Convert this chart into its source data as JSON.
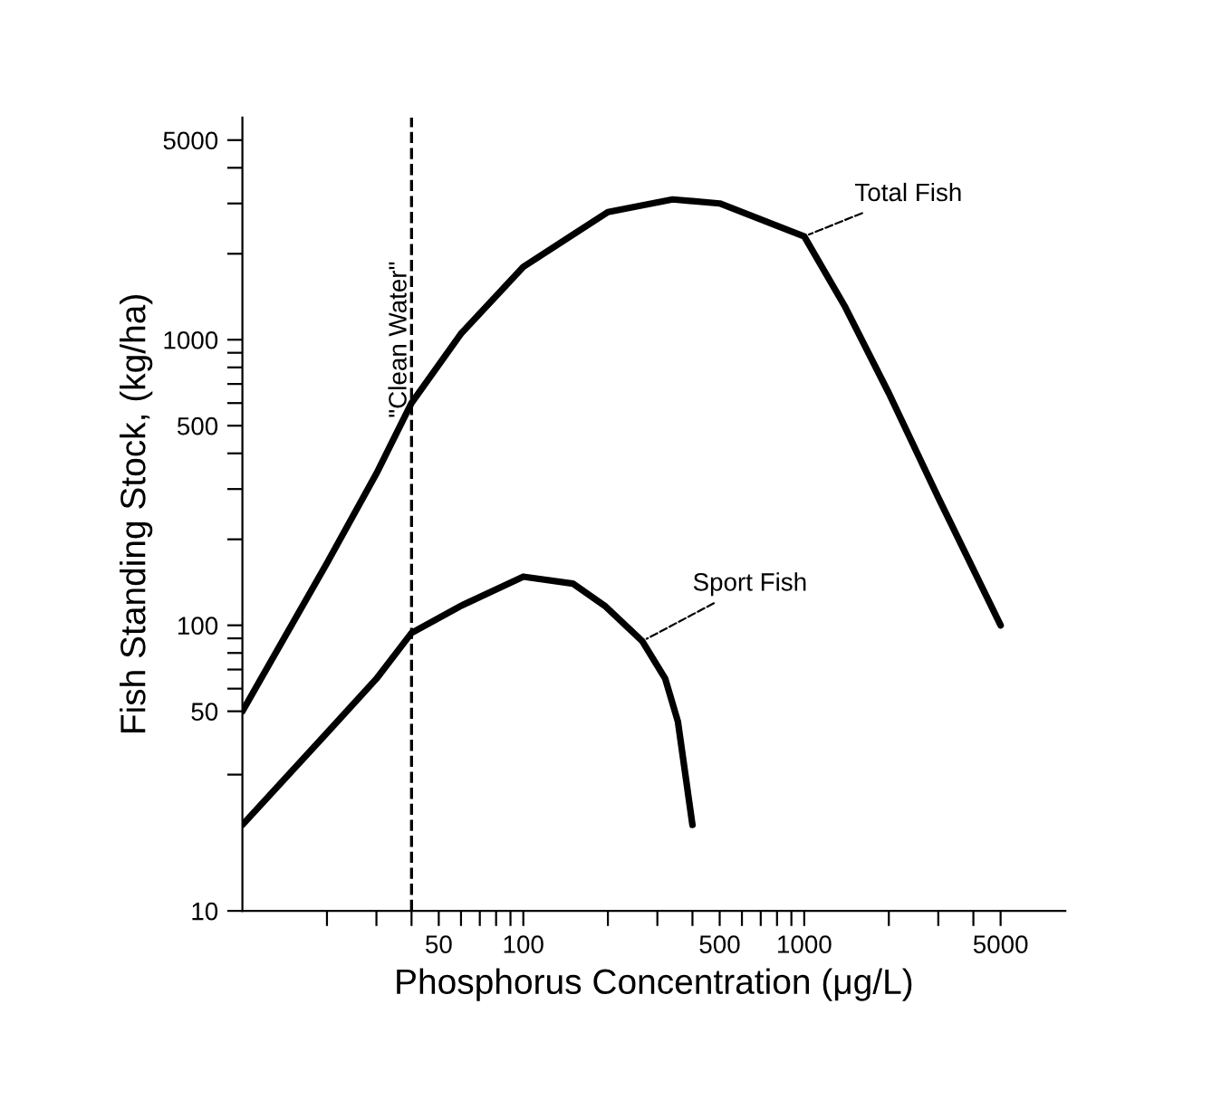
{
  "chart_data": {
    "type": "line",
    "xlabel": "Phosphorus Concentration (μg/L)",
    "ylabel": "Fish Standing Stock, (kg/ha)",
    "log": "xy",
    "grid": false,
    "legend": false,
    "marker": "none",
    "line_style": "solid",
    "xlim": [
      10,
      8500
    ],
    "ylim": [
      10,
      6000
    ],
    "xticks": [
      {
        "value": 20,
        "label": null
      },
      {
        "value": 30,
        "label": null
      },
      {
        "value": 40,
        "label": null
      },
      50,
      {
        "value": 60,
        "label": null
      },
      {
        "value": 70,
        "label": null
      },
      {
        "value": 80,
        "label": null
      },
      {
        "value": 90,
        "label": null
      },
      100,
      {
        "value": 200,
        "label": null
      },
      {
        "value": 300,
        "label": null
      },
      {
        "value": 400,
        "label": null
      },
      500,
      {
        "value": 600,
        "label": null
      },
      {
        "value": 700,
        "label": null
      },
      {
        "value": 800,
        "label": null
      },
      {
        "value": 900,
        "label": null
      },
      1000,
      {
        "value": 2000,
        "label": null
      },
      {
        "value": 3000,
        "label": null
      },
      {
        "value": 4000,
        "label": null
      },
      5000
    ],
    "yticks": [
      10,
      {
        "value": 30,
        "label": null
      },
      50,
      {
        "value": 60,
        "label": null
      },
      {
        "value": 70,
        "label": null
      },
      {
        "value": 80,
        "label": null
      },
      {
        "value": 90,
        "label": null
      },
      100,
      {
        "value": 200,
        "label": null
      },
      {
        "value": 300,
        "label": null
      },
      {
        "value": 400,
        "label": null
      },
      500,
      {
        "value": 600,
        "label": null
      },
      {
        "value": 700,
        "label": null
      },
      {
        "value": 800,
        "label": null
      },
      {
        "value": 900,
        "label": null
      },
      1000,
      {
        "value": 2000,
        "label": null
      },
      {
        "value": 3000,
        "label": null
      },
      {
        "value": 4000,
        "label": null
      },
      5000
    ],
    "series": [
      {
        "color": "#000000",
        "x": [
          10,
          20,
          30,
          40,
          60,
          100,
          200,
          340,
          500,
          1000,
          1400,
          2000,
          3000,
          5000
        ],
        "values": [
          50,
          165,
          340,
          600,
          1050,
          1800,
          2800,
          3100,
          3000,
          2300,
          1300,
          650,
          280,
          100
        ]
      },
      {
        "color": "#000000",
        "x": [
          10,
          20,
          30,
          40,
          60,
          100,
          150,
          195,
          265,
          320,
          355,
          400
        ],
        "values": [
          20,
          42,
          65,
          94,
          117,
          148,
          140,
          117,
          88,
          65,
          46,
          20
        ]
      }
    ],
    "ref_lines": [
      {
        "axis": "x",
        "value": 40,
        "label": "\"Clean Water\"",
        "color": "#000000",
        "line_style": "dashed"
      }
    ],
    "annotations": [
      {
        "text": "Total Fish",
        "x": 1000,
        "y": 2300
      },
      {
        "text": "Sport Fish",
        "x": 265,
        "y": 88
      }
    ]
  }
}
